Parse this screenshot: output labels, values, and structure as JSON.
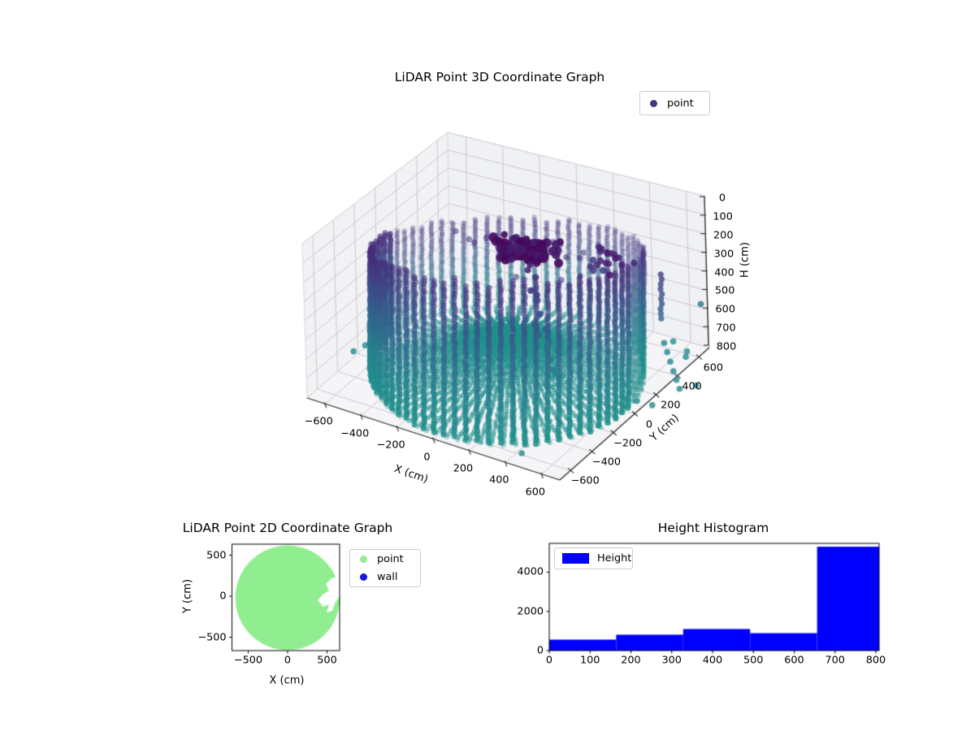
{
  "figure": {
    "background": "#ffffff"
  },
  "chart_data": [
    {
      "id": "lidar3d",
      "type": "scatter3d",
      "title": "LiDAR Point 3D Coordinate Graph",
      "xlabel": "X (cm)",
      "ylabel": "Y (cm)",
      "zlabel": "H (cm)",
      "xlim": [
        -700,
        700
      ],
      "ylim": [
        -700,
        700
      ],
      "zlim": [
        0,
        800
      ],
      "z_axis_inverted": true,
      "xticks": [
        -600,
        -400,
        -200,
        0,
        200,
        400,
        600
      ],
      "yticks": [
        -600,
        -400,
        -200,
        0,
        200,
        400,
        600
      ],
      "zticks": [
        0,
        100,
        200,
        300,
        400,
        500,
        600,
        700,
        800
      ],
      "legend": [
        {
          "label": "point",
          "marker_color": "#453781"
        }
      ],
      "colormap": "viridis (low H = dark purple, high H = teal)",
      "grid": true,
      "cylinder": {
        "radius_cm": 650,
        "wall_h_range_cm": [
          150,
          800
        ],
        "floor_h_cm": 800,
        "azimuth_columns": 72
      },
      "object_cluster": {
        "center_cm": [
          20,
          130,
          190
        ],
        "sigma_cm": [
          90,
          60,
          35
        ],
        "n_points": 130
      },
      "secondary_cluster": {
        "center_cm": [
          360,
          330,
          260
        ],
        "sigma_cm": [
          60,
          60,
          50
        ],
        "n_points": 14
      },
      "arc_cluster_cm": [
        [
          250,
          430,
          220
        ],
        [
          420,
          380,
          260
        ]
      ],
      "drip_trail_cm": [
        [
          30,
          120,
          170
        ],
        [
          120,
          150,
          500
        ],
        [
          180,
          120,
          800
        ]
      ],
      "outside_column": {
        "x": 700,
        "y": 250,
        "h_range": [
          250,
          460
        ],
        "n_points": 10
      },
      "outliers_cm": [
        [
          700,
          620,
          520
        ],
        [
          640,
          380,
          640
        ],
        [
          680,
          340,
          660
        ],
        [
          720,
          300,
          680
        ],
        [
          760,
          260,
          700
        ],
        [
          800,
          220,
          715
        ],
        [
          840,
          180,
          730
        ],
        [
          760,
          -80,
          700
        ],
        [
          820,
          -40,
          720
        ],
        [
          700,
          480,
          740
        ],
        [
          660,
          560,
          760
        ],
        [
          540,
          640,
          780
        ],
        [
          860,
          300,
          760
        ],
        [
          460,
          -650,
          770
        ],
        [
          -660,
          -200,
          740
        ],
        [
          -640,
          -350,
          700
        ]
      ]
    },
    {
      "id": "lidar2d",
      "type": "scatter2d",
      "title": "LiDAR Point 2D Coordinate Graph",
      "xlabel": "X (cm)",
      "ylabel": "Y (cm)",
      "xlim": [
        -700,
        680
      ],
      "ylim": [
        -680,
        650
      ],
      "xticks": [
        -500,
        0,
        500
      ],
      "yticks": [
        -500,
        0,
        500
      ],
      "legend": [
        {
          "label": "point",
          "color": "#90ee90"
        },
        {
          "label": "wall",
          "color": "#1414e0"
        }
      ],
      "disc": {
        "center_cm": [
          0,
          -20
        ],
        "radius_cm": 650,
        "color": "#90ee90"
      },
      "void_regions": "irregular unscanned white notches on right side of disc near x 400-660, y -200..520"
    },
    {
      "id": "height_hist",
      "type": "bar",
      "title": "Height Histogram",
      "legend": [
        {
          "label": "Height",
          "color": "#0000ff"
        }
      ],
      "bin_edges": [
        0,
        164,
        328,
        492,
        656,
        820
      ],
      "values": [
        560,
        810,
        1100,
        890,
        5300
      ],
      "xticks": [
        0,
        100,
        200,
        300,
        400,
        500,
        600,
        700,
        800
      ],
      "yticks": [
        0,
        2000,
        4000
      ],
      "xlim": [
        0,
        808
      ],
      "ylim": [
        0,
        5470
      ],
      "bar_color": "#0000ff",
      "grid": false
    }
  ]
}
